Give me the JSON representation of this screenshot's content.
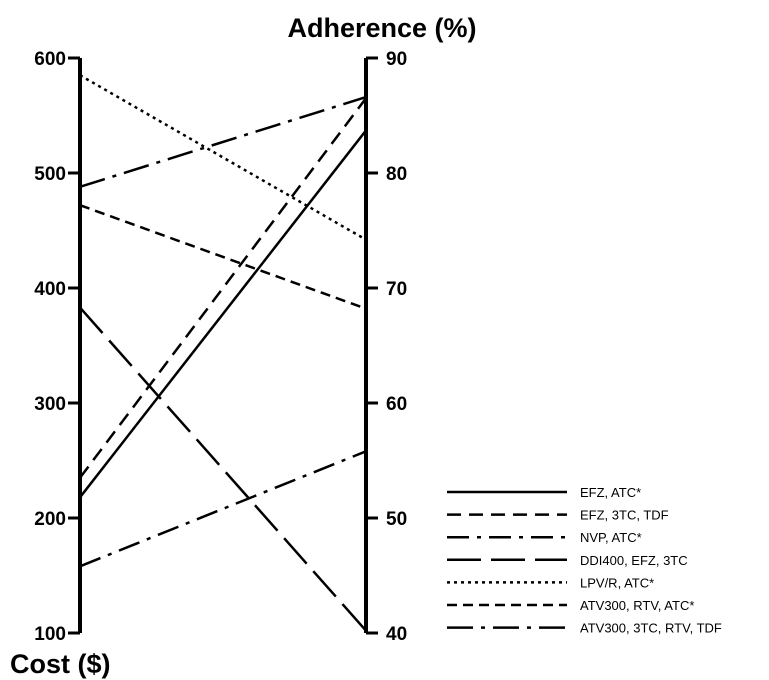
{
  "chart_data": {
    "type": "line",
    "subtype": "parallel-coordinates",
    "left_axis": {
      "label": "Cost ($)",
      "range": [
        100,
        600
      ],
      "ticks": [
        100,
        200,
        300,
        400,
        500,
        600
      ]
    },
    "right_axis": {
      "label": "Adherence (%)",
      "range": [
        40,
        90
      ],
      "ticks": [
        40,
        50,
        60,
        70,
        80,
        90
      ]
    },
    "series": [
      {
        "name": "EFZ, ATC*",
        "cost": 218,
        "adherence": 83.7,
        "dash": "solid"
      },
      {
        "name": "EFZ, 3TC, TDF",
        "cost": 235,
        "adherence": 86.5,
        "dash": "dash"
      },
      {
        "name": "NVP, ATC*",
        "cost": 158,
        "adherence": 55.8,
        "dash": "dash-dot"
      },
      {
        "name": "DDI400, EFZ, 3TC",
        "cost": 383,
        "adherence": 40.2,
        "dash": "long-dash"
      },
      {
        "name": "LPV/R, ATC*",
        "cost": 585,
        "adherence": 74.2,
        "dash": "dot"
      },
      {
        "name": "ATV300, RTV, ATC*",
        "cost": 472,
        "adherence": 68.2,
        "dash": "short-dash"
      },
      {
        "name": "ATV300, 3TC, RTV, TDF",
        "cost": 488,
        "adherence": 86.6,
        "dash": "long-dash-dot"
      }
    ],
    "legend_position": "bottom-right",
    "grid": false,
    "colors": {
      "line": "#000000",
      "background": "#ffffff"
    }
  }
}
